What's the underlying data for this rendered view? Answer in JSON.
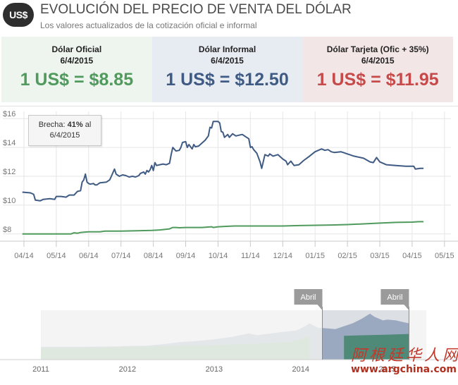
{
  "header": {
    "logo_text": "US$",
    "title": "EVOLUCIÓN DEL PRECIO DE VENTA DEL DÓLAR",
    "subtitle": "Los valores actualizados de la cotización oficial e informal"
  },
  "cards": [
    {
      "label": "Dólar Oficial",
      "date": "6/4/2015",
      "value": "1 US$ = $8.85",
      "color": "#4f9a5c"
    },
    {
      "label": "Dólar Informal",
      "date": "6/4/2015",
      "value": "1 US$ = $12.50",
      "color": "#3f5b84"
    },
    {
      "label": "Dólar Tarjeta (Ofic + 35%)",
      "date": "6/4/2015",
      "value": "1 US$ = $11.95",
      "color": "#c64a4a"
    }
  ],
  "tooltip": {
    "prefix": "Brecha: ",
    "percent": "41%",
    "suffix": " al",
    "date": "6/4/2015"
  },
  "chart_data": {
    "type": "line",
    "title": "",
    "ylim": [
      7.5,
      16.5
    ],
    "y_ticks": [
      {
        "value": 8,
        "label": "$8"
      },
      {
        "value": 10,
        "label": "$10"
      },
      {
        "value": 12,
        "label": "$12"
      },
      {
        "value": 14,
        "label": "$14"
      },
      {
        "value": 16,
        "label": "$16"
      }
    ],
    "x_range": [
      0,
      13.2
    ],
    "x_ticks": [
      {
        "value": 0,
        "label": "04/14"
      },
      {
        "value": 1,
        "label": "05/14"
      },
      {
        "value": 2,
        "label": "06/14"
      },
      {
        "value": 3,
        "label": "07/14"
      },
      {
        "value": 4,
        "label": "08/14"
      },
      {
        "value": 5,
        "label": "09/14"
      },
      {
        "value": 6,
        "label": "10/14"
      },
      {
        "value": 7,
        "label": "11/14"
      },
      {
        "value": 8,
        "label": "12/14"
      },
      {
        "value": 9,
        "label": "01/15"
      },
      {
        "value": 10,
        "label": "02/15"
      },
      {
        "value": 11,
        "label": "03/15"
      },
      {
        "value": 12,
        "label": "04/15"
      },
      {
        "value": 13,
        "label": "05/15"
      }
    ],
    "grid": true,
    "series": [
      {
        "name": "Dólar Informal",
        "color": "#3f5b84",
        "points": [
          [
            -0.05,
            10.9
          ],
          [
            0.2,
            10.85
          ],
          [
            0.3,
            10.75
          ],
          [
            0.35,
            10.35
          ],
          [
            0.5,
            10.3
          ],
          [
            0.6,
            10.4
          ],
          [
            0.8,
            10.45
          ],
          [
            0.95,
            10.4
          ],
          [
            1.0,
            10.6
          ],
          [
            1.15,
            10.6
          ],
          [
            1.3,
            10.55
          ],
          [
            1.4,
            10.7
          ],
          [
            1.55,
            10.7
          ],
          [
            1.65,
            10.95
          ],
          [
            1.75,
            11.0
          ],
          [
            1.8,
            11.6
          ],
          [
            1.85,
            11.75
          ],
          [
            1.9,
            12.15
          ],
          [
            1.95,
            11.6
          ],
          [
            2.0,
            11.5
          ],
          [
            2.05,
            11.45
          ],
          [
            2.15,
            11.5
          ],
          [
            2.2,
            11.4
          ],
          [
            2.25,
            11.4
          ],
          [
            2.35,
            11.55
          ],
          [
            2.55,
            11.6
          ],
          [
            2.65,
            11.75
          ],
          [
            2.72,
            12.1
          ],
          [
            2.8,
            12.5
          ],
          [
            2.85,
            12.15
          ],
          [
            2.95,
            12.0
          ],
          [
            3.05,
            12.1
          ],
          [
            3.15,
            12.05
          ],
          [
            3.25,
            11.95
          ],
          [
            3.35,
            12.0
          ],
          [
            3.45,
            11.95
          ],
          [
            3.55,
            12.05
          ],
          [
            3.6,
            12.2
          ],
          [
            3.7,
            12.3
          ],
          [
            3.75,
            12.15
          ],
          [
            3.8,
            12.4
          ],
          [
            3.85,
            12.3
          ],
          [
            3.9,
            12.45
          ],
          [
            3.95,
            12.75
          ],
          [
            4.0,
            12.4
          ],
          [
            4.05,
            12.95
          ],
          [
            4.1,
            12.75
          ],
          [
            4.2,
            12.8
          ],
          [
            4.3,
            12.85
          ],
          [
            4.4,
            12.8
          ],
          [
            4.5,
            12.9
          ],
          [
            4.55,
            13.5
          ],
          [
            4.6,
            14.0
          ],
          [
            4.7,
            13.75
          ],
          [
            4.8,
            13.8
          ],
          [
            4.85,
            14.0
          ],
          [
            4.9,
            14.35
          ],
          [
            5.0,
            14.4
          ],
          [
            5.05,
            14.0
          ],
          [
            5.1,
            14.2
          ],
          [
            5.2,
            13.9
          ],
          [
            5.25,
            14.2
          ],
          [
            5.3,
            14.05
          ],
          [
            5.4,
            14.1
          ],
          [
            5.5,
            14.3
          ],
          [
            5.6,
            14.5
          ],
          [
            5.7,
            14.8
          ],
          [
            5.75,
            15.4
          ],
          [
            5.8,
            15.35
          ],
          [
            5.85,
            15.8
          ],
          [
            5.9,
            15.8
          ],
          [
            6.0,
            15.8
          ],
          [
            6.05,
            15.7
          ],
          [
            6.1,
            15.1
          ],
          [
            6.15,
            15.05
          ],
          [
            6.2,
            14.7
          ],
          [
            6.3,
            14.9
          ],
          [
            6.35,
            14.7
          ],
          [
            6.45,
            14.95
          ],
          [
            6.55,
            14.8
          ],
          [
            6.65,
            14.85
          ],
          [
            6.75,
            14.9
          ],
          [
            6.85,
            14.75
          ],
          [
            6.95,
            14.6
          ],
          [
            7.0,
            14.0
          ],
          [
            7.05,
            14.05
          ],
          [
            7.1,
            13.85
          ],
          [
            7.2,
            13.6
          ],
          [
            7.3,
            13.0
          ],
          [
            7.35,
            12.55
          ],
          [
            7.45,
            13.5
          ],
          [
            7.55,
            13.4
          ],
          [
            7.6,
            13.55
          ],
          [
            7.7,
            13.4
          ],
          [
            7.85,
            13.5
          ],
          [
            8.0,
            13.2
          ],
          [
            8.1,
            13.05
          ],
          [
            8.15,
            12.8
          ],
          [
            8.25,
            13.05
          ],
          [
            8.35,
            12.75
          ],
          [
            8.5,
            12.8
          ],
          [
            8.65,
            13.1
          ],
          [
            8.8,
            13.35
          ],
          [
            9.0,
            13.7
          ],
          [
            9.1,
            13.8
          ],
          [
            9.2,
            13.9
          ],
          [
            9.3,
            13.8
          ],
          [
            9.4,
            13.85
          ],
          [
            9.5,
            13.7
          ],
          [
            9.6,
            13.65
          ],
          [
            9.8,
            13.7
          ],
          [
            10.0,
            13.55
          ],
          [
            10.2,
            13.4
          ],
          [
            10.5,
            13.25
          ],
          [
            10.7,
            13.0
          ],
          [
            10.8,
            12.95
          ],
          [
            10.9,
            13.3
          ],
          [
            11.0,
            13.0
          ],
          [
            11.2,
            12.8
          ],
          [
            11.5,
            12.75
          ],
          [
            11.8,
            12.7
          ],
          [
            12.05,
            12.7
          ],
          [
            12.1,
            12.5
          ],
          [
            12.25,
            12.55
          ],
          [
            12.35,
            12.55
          ]
        ]
      },
      {
        "name": "Dólar Oficial",
        "color": "#4f9a5c",
        "points": [
          [
            -0.05,
            8.0
          ],
          [
            1.0,
            8.0
          ],
          [
            1.45,
            8.0
          ],
          [
            1.55,
            8.08
          ],
          [
            1.65,
            8.05
          ],
          [
            1.75,
            8.1
          ],
          [
            1.85,
            8.12
          ],
          [
            2.0,
            8.15
          ],
          [
            2.2,
            8.15
          ],
          [
            2.35,
            8.15
          ],
          [
            2.5,
            8.2
          ],
          [
            3.0,
            8.2
          ],
          [
            3.5,
            8.22
          ],
          [
            3.95,
            8.25
          ],
          [
            4.2,
            8.28
          ],
          [
            4.5,
            8.35
          ],
          [
            4.6,
            8.45
          ],
          [
            4.7,
            8.45
          ],
          [
            4.8,
            8.43
          ],
          [
            5.0,
            8.45
          ],
          [
            5.5,
            8.45
          ],
          [
            5.8,
            8.5
          ],
          [
            5.85,
            8.45
          ],
          [
            6.0,
            8.5
          ],
          [
            6.2,
            8.52
          ],
          [
            6.5,
            8.55
          ],
          [
            7.0,
            8.55
          ],
          [
            7.5,
            8.55
          ],
          [
            8.0,
            8.55
          ],
          [
            8.5,
            8.58
          ],
          [
            9.0,
            8.6
          ],
          [
            9.5,
            8.62
          ],
          [
            10.0,
            8.65
          ],
          [
            10.5,
            8.7
          ],
          [
            11.0,
            8.75
          ],
          [
            11.5,
            8.8
          ],
          [
            12.0,
            8.82
          ],
          [
            12.2,
            8.85
          ],
          [
            12.35,
            8.85
          ]
        ]
      }
    ],
    "navigator": {
      "x_range": [
        2011.0,
        2015.45
      ],
      "x_ticks": [
        {
          "value": 2011,
          "label": "2011"
        },
        {
          "value": 2012,
          "label": "2012"
        },
        {
          "value": 2013,
          "label": "2013"
        },
        {
          "value": 2014,
          "label": "2014"
        },
        {
          "value": 2015,
          "label": "2015"
        }
      ],
      "ylim": [
        0,
        17
      ],
      "selection": [
        2014.25,
        2015.25
      ],
      "handle_left_label": "Abril",
      "handle_right_label": "Abril",
      "area_informal": [
        [
          2011.0,
          4.4
        ],
        [
          2011.5,
          4.45
        ],
        [
          2011.9,
          4.6
        ],
        [
          2012.0,
          4.7
        ],
        [
          2012.2,
          4.75
        ],
        [
          2012.4,
          5.3
        ],
        [
          2012.6,
          6.0
        ],
        [
          2012.8,
          6.4
        ],
        [
          2013.0,
          7.0
        ],
        [
          2013.2,
          7.8
        ],
        [
          2013.4,
          9.0
        ],
        [
          2013.5,
          8.4
        ],
        [
          2013.6,
          8.8
        ],
        [
          2013.8,
          9.6
        ],
        [
          2013.95,
          10.0
        ],
        [
          2014.05,
          11.5
        ],
        [
          2014.1,
          12.5
        ],
        [
          2014.2,
          11.0
        ],
        [
          2014.25,
          10.9
        ],
        [
          2014.4,
          10.5
        ],
        [
          2014.5,
          11.5
        ],
        [
          2014.6,
          12.5
        ],
        [
          2014.7,
          14.0
        ],
        [
          2014.8,
          15.8
        ],
        [
          2014.85,
          14.8
        ],
        [
          2014.95,
          13.5
        ],
        [
          2015.0,
          13.8
        ],
        [
          2015.1,
          13.5
        ],
        [
          2015.2,
          12.8
        ],
        [
          2015.25,
          12.5
        ]
      ],
      "area_oficial": [
        [
          2011.0,
          4.0
        ],
        [
          2011.5,
          4.1
        ],
        [
          2012.0,
          4.4
        ],
        [
          2012.5,
          4.7
        ],
        [
          2013.0,
          5.0
        ],
        [
          2013.5,
          5.5
        ],
        [
          2013.9,
          6.2
        ],
        [
          2014.05,
          7.5
        ],
        [
          2014.1,
          8.0
        ],
        [
          2014.5,
          8.2
        ],
        [
          2015.0,
          8.6
        ],
        [
          2015.25,
          8.85
        ]
      ]
    }
  },
  "watermark": {
    "chinese": "阿根廷华人网",
    "url": "www.argchina.com"
  }
}
